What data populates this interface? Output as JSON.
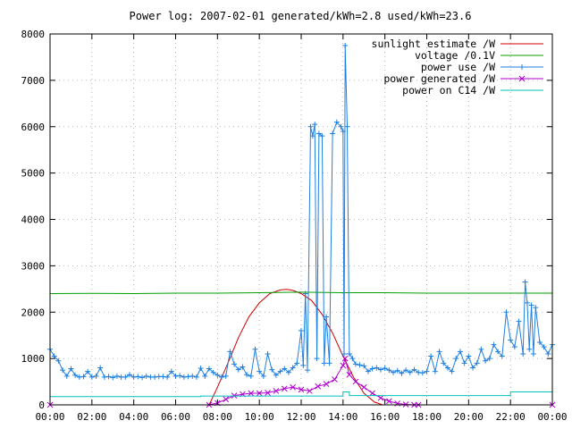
{
  "chart_data": {
    "type": "line",
    "title": "Power log: 2007-02-01 generated/kWh=2.8 used/kWh=23.6",
    "xlabel": "",
    "ylabel": "",
    "xlim": [
      0,
      24
    ],
    "ylim": [
      0,
      8000
    ],
    "x_ticks": [
      "00:00",
      "02:00",
      "04:00",
      "06:00",
      "08:00",
      "10:00",
      "12:00",
      "14:00",
      "16:00",
      "18:00",
      "20:00",
      "22:00",
      "00:00"
    ],
    "y_ticks": [
      "0",
      "1000",
      "2000",
      "3000",
      "4000",
      "5000",
      "6000",
      "7000",
      "8000"
    ],
    "grid": true,
    "legend_position": "top-right",
    "series": [
      {
        "name": "sunlight estimate /W",
        "color": "#cc0000",
        "marker": "none",
        "x": [
          7.6,
          8.0,
          8.5,
          9.0,
          9.5,
          10.0,
          10.5,
          11.0,
          11.3,
          11.6,
          12.0,
          12.5,
          13.0,
          13.5,
          14.0,
          14.5,
          15.0,
          15.5,
          15.9
        ],
        "y": [
          0,
          380,
          900,
          1450,
          1900,
          2200,
          2400,
          2480,
          2490,
          2470,
          2400,
          2250,
          1950,
          1550,
          1050,
          600,
          250,
          60,
          0
        ]
      },
      {
        "name": "voltage /0.1V",
        "color": "#00a000",
        "marker": "none",
        "x": [
          0,
          2,
          4,
          6,
          8,
          10,
          12,
          14,
          16,
          18,
          20,
          22,
          24
        ],
        "y": [
          2400,
          2405,
          2400,
          2410,
          2410,
          2420,
          2430,
          2420,
          2420,
          2410,
          2410,
          2410,
          2410
        ]
      },
      {
        "name": "power use /W",
        "color": "#1e7fe0",
        "marker": "plus",
        "x": [
          0.0,
          0.2,
          0.4,
          0.6,
          0.8,
          1.0,
          1.2,
          1.4,
          1.6,
          1.8,
          2.0,
          2.2,
          2.4,
          2.6,
          2.8,
          3.0,
          3.2,
          3.4,
          3.6,
          3.8,
          4.0,
          4.2,
          4.4,
          4.6,
          4.8,
          5.0,
          5.2,
          5.4,
          5.6,
          5.8,
          6.0,
          6.2,
          6.4,
          6.6,
          6.8,
          7.0,
          7.2,
          7.4,
          7.6,
          7.8,
          8.0,
          8.2,
          8.4,
          8.6,
          8.8,
          9.0,
          9.2,
          9.4,
          9.6,
          9.8,
          10.0,
          10.2,
          10.4,
          10.6,
          10.8,
          11.0,
          11.2,
          11.4,
          11.6,
          11.8,
          12.0,
          12.1,
          12.2,
          12.3,
          12.45,
          12.55,
          12.65,
          12.75,
          12.85,
          13.0,
          13.1,
          13.2,
          13.35,
          13.5,
          13.7,
          13.9,
          14.0,
          14.05,
          14.1,
          14.2,
          14.3,
          14.45,
          14.6,
          14.8,
          15.0,
          15.2,
          15.4,
          15.6,
          15.8,
          16.0,
          16.2,
          16.4,
          16.6,
          16.8,
          17.0,
          17.2,
          17.4,
          17.6,
          17.8,
          18.0,
          18.2,
          18.4,
          18.6,
          18.8,
          19.0,
          19.2,
          19.4,
          19.6,
          19.8,
          20.0,
          20.2,
          20.4,
          20.6,
          20.8,
          21.0,
          21.2,
          21.4,
          21.6,
          21.8,
          22.0,
          22.2,
          22.4,
          22.6,
          22.7,
          22.8,
          22.9,
          23.0,
          23.1,
          23.2,
          23.4,
          23.6,
          23.8,
          24.0
        ],
        "y": [
          1200,
          1050,
          950,
          750,
          620,
          780,
          640,
          600,
          610,
          720,
          600,
          620,
          800,
          600,
          610,
          590,
          620,
          600,
          600,
          650,
          600,
          610,
          590,
          620,
          600,
          600,
          610,
          610,
          600,
          720,
          620,
          630,
          600,
          610,
          620,
          600,
          790,
          620,
          780,
          700,
          640,
          600,
          620,
          1150,
          880,
          760,
          820,
          650,
          620,
          1200,
          720,
          620,
          1100,
          760,
          640,
          720,
          780,
          700,
          800,
          900,
          1600,
          850,
          2400,
          750,
          6000,
          5800,
          6050,
          1000,
          5850,
          5800,
          900,
          1900,
          900,
          5850,
          6100,
          6000,
          5900,
          1100,
          7750,
          6000,
          1100,
          1000,
          880,
          860,
          840,
          720,
          780,
          800,
          760,
          790,
          750,
          700,
          740,
          680,
          750,
          700,
          760,
          700,
          690,
          720,
          1050,
          720,
          1150,
          900,
          800,
          720,
          1000,
          1150,
          900,
          1050,
          800,
          900,
          1200,
          950,
          1000,
          1300,
          1150,
          1050,
          2000,
          1400,
          1250,
          1800,
          1100,
          2650,
          2200,
          1200,
          2150,
          1100,
          2100,
          1350,
          1250,
          1100,
          1300
        ]
      },
      {
        "name": "power generated /W",
        "color": "#b000d0",
        "marker": "cross",
        "x": [
          0,
          7.6,
          8.0,
          8.4,
          8.8,
          9.2,
          9.6,
          10.0,
          10.4,
          10.8,
          11.2,
          11.6,
          12.0,
          12.4,
          12.8,
          13.2,
          13.6,
          14.0,
          14.1,
          14.3,
          14.6,
          15.0,
          15.4,
          15.8,
          16.2,
          16.6,
          17.0,
          17.4,
          17.6,
          24
        ],
        "y": [
          0,
          0,
          40,
          120,
          200,
          230,
          250,
          250,
          260,
          300,
          350,
          380,
          330,
          300,
          400,
          450,
          550,
          850,
          1000,
          650,
          500,
          380,
          250,
          150,
          80,
          30,
          10,
          0,
          0,
          0
        ]
      },
      {
        "name": "power on C14 /W",
        "color": "#00c0c0",
        "marker": "none",
        "x": [
          0,
          7.2,
          7.2,
          14.0,
          14.0,
          14.3,
          14.3,
          22.0,
          22.0,
          24
        ],
        "y": [
          180,
          180,
          190,
          190,
          280,
          280,
          200,
          200,
          280,
          280
        ]
      }
    ]
  }
}
